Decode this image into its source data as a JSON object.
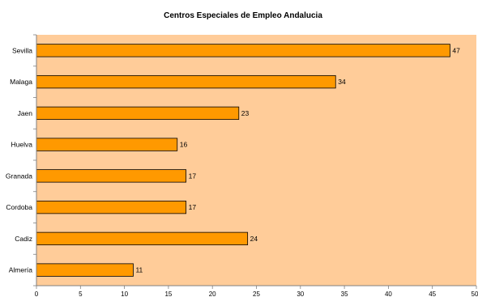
{
  "chart_data": {
    "type": "bar",
    "orientation": "horizontal",
    "title": "Centros Especiales de Empleo Andalucia",
    "categories": [
      "Sevilla",
      "Malaga",
      "Jaen",
      "Huelva",
      "Granada",
      "Cordoba",
      "Cadiz",
      "Almería"
    ],
    "values": [
      47,
      34,
      23,
      16,
      17,
      17,
      24,
      11
    ],
    "xlim": [
      0,
      50
    ],
    "x_ticks": [
      "0",
      "5",
      "10",
      "15",
      "20",
      "25",
      "30",
      "35",
      "40",
      "45",
      "50"
    ],
    "grid": false,
    "legend": "none",
    "colors": {
      "bar_fill": "#FF9900",
      "bar_stroke": "#000000",
      "plot_background": "#FFCC99",
      "axis": "#808080"
    }
  }
}
